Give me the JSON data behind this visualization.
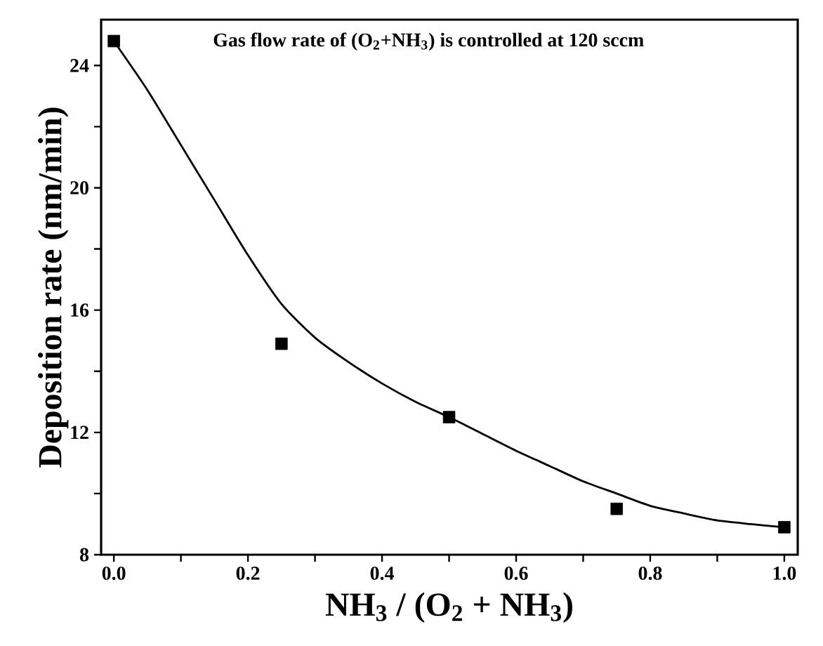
{
  "chart_data": {
    "type": "scatter",
    "xlabel": "NH$_{3}$ / (O$_{2}$ + NH$_{3}$)",
    "ylabel": "Deposition rate (nm/min)",
    "annotations": [
      "Gas flow rate of (O$_{2}$+NH$_{3}$) is controlled at 120 sccm"
    ],
    "xlim": [
      -0.019,
      1.02
    ],
    "ylim": [
      8,
      25.5
    ],
    "xticks": [
      {
        "value": 0,
        "label": "0.0"
      },
      {
        "value": 0.1,
        "label": null
      },
      {
        "value": 0.2,
        "label": "0.2"
      },
      {
        "value": 0.3,
        "label": null
      },
      {
        "value": 0.4,
        "label": "0.4"
      },
      {
        "value": 0.5,
        "label": null
      },
      {
        "value": 0.6,
        "label": "0.6"
      },
      {
        "value": 0.7,
        "label": null
      },
      {
        "value": 0.8,
        "label": "0.8"
      },
      {
        "value": 0.9,
        "label": null
      },
      {
        "value": 1.0,
        "label": "1.0"
      }
    ],
    "yticks": [
      8,
      {
        "value": 10,
        "label": null
      },
      12,
      {
        "value": 14,
        "label": null
      },
      16,
      {
        "value": 18,
        "label": null
      },
      20,
      {
        "value": 22,
        "label": null
      },
      24
    ],
    "series": [
      {
        "color": "#000000",
        "marker": "square",
        "x": [
          0,
          0.25,
          0.5,
          0.75,
          1.0
        ],
        "values": [
          24.8,
          14.9,
          12.5,
          9.5,
          8.9
        ]
      },
      {
        "type": "line",
        "color": "#000000",
        "marker": "none",
        "line_style": "solid",
        "x": [
          0,
          0.05,
          0.1,
          0.15,
          0.2,
          0.25,
          0.3,
          0.35,
          0.4,
          0.45,
          0.5,
          0.55,
          0.6,
          0.65,
          0.7,
          0.75,
          0.8,
          0.85,
          0.9,
          0.95,
          1.0
        ],
        "values": [
          24.8,
          23.2,
          21.4,
          19.6,
          17.8,
          16.2,
          15.1,
          14.3,
          13.6,
          13.0,
          12.5,
          11.95,
          11.4,
          10.9,
          10.4,
          10.0,
          9.6,
          9.35,
          9.12,
          9.0,
          8.9
        ]
      }
    ]
  }
}
